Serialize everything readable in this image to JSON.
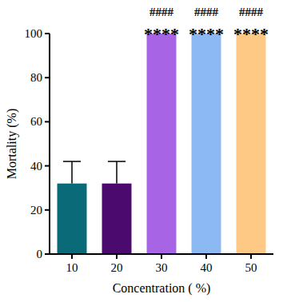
{
  "chart_data": {
    "type": "bar",
    "x_label": "Concentration ( %)",
    "y_label": "Mortality (%)",
    "categories": [
      "10",
      "20",
      "30",
      "40",
      "50"
    ],
    "values": [
      32,
      32,
      100,
      100,
      100
    ],
    "errors": [
      10,
      10,
      0,
      0,
      0
    ],
    "colors": [
      "#0b6a78",
      "#4a0a6e",
      "#a765e6",
      "#8cb9f4",
      "#fec985"
    ],
    "annotations": [
      null,
      null,
      [
        "####",
        "****"
      ],
      [
        "####",
        "****"
      ],
      [
        "####",
        "****"
      ]
    ],
    "ylim": [
      0,
      100
    ],
    "yticks": [
      0,
      20,
      40,
      60,
      80,
      100
    ],
    "grid": false
  }
}
